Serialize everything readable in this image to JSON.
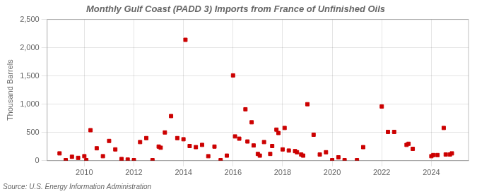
{
  "chart_data": {
    "type": "scatter",
    "title": "Monthly Gulf Coast (PADD 3) Imports from France of Unfinished Oils",
    "ylabel": "Thousand Barrels",
    "source": "Source: U.S. Energy Information Administration",
    "color": "#cc0000",
    "marker": "square",
    "grid": true,
    "xlim": [
      2008.5,
      2025.5
    ],
    "xticks": [
      2010,
      2012,
      2014,
      2016,
      2018,
      2020,
      2022,
      2024
    ],
    "ylim": [
      0,
      2500
    ],
    "yticks": [
      0,
      500,
      {
        "value": 1000,
        "label": "1,000"
      },
      {
        "value": 1500,
        "label": "1,500"
      },
      {
        "value": 2000,
        "label": "2,000"
      },
      {
        "value": 2500,
        "label": "2,500"
      }
    ],
    "x": [
      2009.0,
      2009.25,
      2009.5,
      2009.75,
      2010.0,
      2010.08,
      2010.25,
      2010.5,
      2010.75,
      2011.0,
      2011.25,
      2011.5,
      2011.75,
      2012.0,
      2012.25,
      2012.5,
      2012.75,
      2013.0,
      2013.08,
      2013.25,
      2013.5,
      2013.75,
      2014.0,
      2014.08,
      2014.25,
      2014.5,
      2014.75,
      2015.0,
      2015.25,
      2015.5,
      2015.75,
      2016.0,
      2016.08,
      2016.25,
      2016.5,
      2016.58,
      2016.75,
      2016.83,
      2017.0,
      2017.08,
      2017.25,
      2017.5,
      2017.58,
      2017.75,
      2017.83,
      2018.0,
      2018.08,
      2018.25,
      2018.5,
      2018.58,
      2018.75,
      2018.83,
      2019.0,
      2019.25,
      2019.5,
      2019.75,
      2020.0,
      2020.25,
      2020.5,
      2021.0,
      2021.25,
      2022.0,
      2022.25,
      2022.5,
      2023.0,
      2023.08,
      2023.25,
      2024.0,
      2024.08,
      2024.25,
      2024.5,
      2024.58,
      2024.75,
      2024.83
    ],
    "values": [
      130,
      10,
      70,
      50,
      80,
      10,
      540,
      220,
      80,
      350,
      200,
      30,
      20,
      10,
      330,
      400,
      10,
      250,
      230,
      500,
      790,
      400,
      380,
      2140,
      260,
      240,
      280,
      80,
      250,
      10,
      90,
      1510,
      430,
      390,
      910,
      340,
      680,
      270,
      120,
      90,
      330,
      120,
      260,
      550,
      490,
      200,
      580,
      180,
      170,
      150,
      110,
      90,
      1000,
      460,
      110,
      150,
      10,
      60,
      10,
      10,
      240,
      960,
      510,
      510,
      280,
      300,
      210,
      80,
      100,
      100,
      580,
      110,
      110,
      130
    ]
  }
}
